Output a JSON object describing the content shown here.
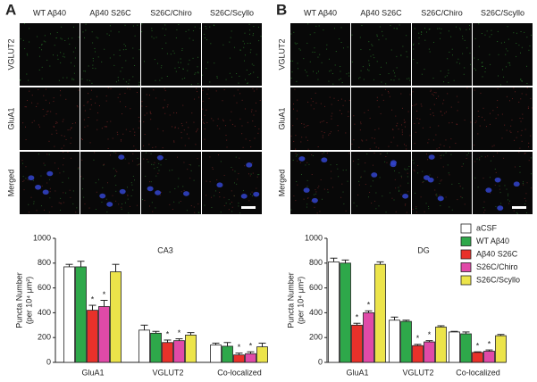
{
  "panels": [
    {
      "label": "A",
      "columns": [
        "WT Aβ40",
        "Aβ40 S26C",
        "S26C/Chiro",
        "S26C/Scyllo"
      ],
      "rows": [
        "VGLUT2",
        "GluA1",
        "Merged"
      ]
    },
    {
      "label": "B",
      "columns": [
        "WT Aβ40",
        "Aβ40 S26C",
        "S26C/Chiro",
        "S26C/Scyllo"
      ],
      "rows": [
        "VGLUT2",
        "GluA1",
        "Merged"
      ]
    }
  ],
  "chart_data": [
    {
      "type": "bar",
      "title": "CA3",
      "y_label": "Puncta Number",
      "y_label_unit": "(per 10⁴ μm²)",
      "categories": [
        "GluA1",
        "VGLUT2",
        "Co-localized"
      ],
      "ylim": [
        0,
        1000
      ],
      "yticks": [
        0,
        200,
        400,
        600,
        800,
        1000
      ],
      "series": [
        {
          "color": "#ffffff",
          "values": [
            770,
            260,
            140
          ],
          "errors": [
            20,
            40,
            15
          ]
        },
        {
          "color": "#2ea84a",
          "values": [
            770,
            235,
            130
          ],
          "errors": [
            45,
            15,
            30
          ]
        },
        {
          "color": "#e8312a",
          "values": [
            420,
            160,
            60
          ],
          "errors": [
            40,
            20,
            15
          ],
          "significance": [
            "*",
            "*",
            "*"
          ]
        },
        {
          "color": "#e04aa8",
          "values": [
            450,
            175,
            70
          ],
          "errors": [
            50,
            15,
            15
          ],
          "significance": [
            "*",
            "*",
            "*"
          ]
        },
        {
          "color": "#ece44a",
          "values": [
            730,
            220,
            125
          ],
          "errors": [
            60,
            20,
            30
          ]
        }
      ]
    },
    {
      "type": "bar",
      "title": "DG",
      "y_label": "Puncta Number",
      "y_label_unit": "(per 10⁴ μm²)",
      "categories": [
        "GluA1",
        "VGLUT2",
        "Co-localized"
      ],
      "ylim": [
        0,
        1000
      ],
      "yticks": [
        0,
        200,
        400,
        600,
        800,
        1000
      ],
      "legend": "upper right",
      "series": [
        {
          "name": "aCSF",
          "color": "#ffffff",
          "values": [
            810,
            340,
            245
          ],
          "errors": [
            30,
            25,
            5
          ]
        },
        {
          "name": "WT Aβ40",
          "color": "#2ea84a",
          "values": [
            800,
            330,
            230
          ],
          "errors": [
            25,
            10,
            15
          ]
        },
        {
          "name": "Aβ40 S26C",
          "color": "#e8312a",
          "values": [
            300,
            135,
            80
          ],
          "errors": [
            15,
            10,
            5
          ],
          "significance": [
            "*",
            "*",
            "*"
          ]
        },
        {
          "name": "S26C/Chiro",
          "color": "#e04aa8",
          "values": [
            400,
            165,
            90
          ],
          "errors": [
            15,
            10,
            10
          ],
          "significance": [
            "*",
            "*",
            "*"
          ]
        },
        {
          "name": "S26C/Scyllo",
          "color": "#ece44a",
          "values": [
            790,
            285,
            215
          ],
          "errors": [
            20,
            10,
            10
          ]
        }
      ]
    }
  ]
}
